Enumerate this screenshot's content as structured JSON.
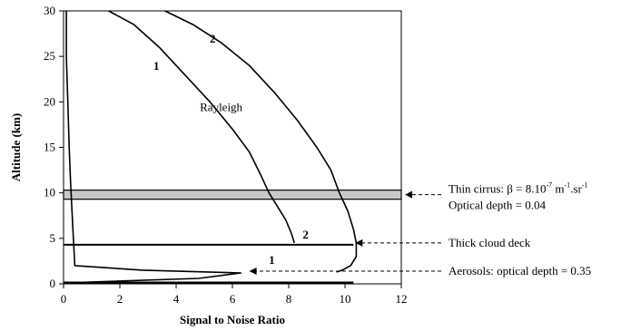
{
  "chart_data": {
    "type": "line",
    "xlabel": "Signal to Noise Ratio",
    "ylabel": "Altitude (km)",
    "xlim": [
      0,
      12
    ],
    "ylim": [
      0,
      30
    ],
    "x_ticks": [
      "0",
      "2",
      "4",
      "6",
      "8",
      "10",
      "12"
    ],
    "y_ticks": [
      "0",
      "5",
      "10",
      "15",
      "20",
      "25",
      "30"
    ],
    "grid": false,
    "series": [
      {
        "name": "Rayleigh",
        "x": [
          1.6,
          2.5,
          3.4,
          4.3,
          5.2,
          6.0,
          6.6,
          7.0,
          7.3,
          7.6,
          7.9,
          8.1,
          8.2
        ],
        "y": [
          30,
          28.5,
          26,
          23,
          20,
          17,
          14.5,
          12,
          10,
          8.5,
          7,
          5.5,
          4.5
        ]
      },
      {
        "name": "",
        "x": [
          3.6,
          4.6,
          5.6,
          6.6,
          7.5,
          8.3,
          9.0,
          9.5,
          9.8,
          10.1,
          10.3,
          10.4,
          10.4,
          10.2,
          9.9,
          9.7
        ],
        "y": [
          30,
          28.5,
          26.5,
          24,
          21,
          18,
          15,
          12.5,
          10,
          8,
          6,
          4.5,
          3,
          2,
          1.5,
          1.3
        ]
      },
      {
        "name": "",
        "x": [
          0.1,
          0.1,
          0.15,
          0.2,
          0.25,
          0.3,
          0.35,
          0.4,
          2.8,
          6.3,
          4.8,
          0
        ],
        "y": [
          30,
          25,
          20,
          15,
          11,
          8,
          5,
          2,
          1.5,
          1.2,
          0.6,
          0.1
        ]
      }
    ],
    "curve_labels": [
      "1",
      "2",
      "1",
      "2",
      "1"
    ],
    "annotation_label": "Rayleigh",
    "layers": [
      {
        "name": "Thin cirrus",
        "y_range": [
          9.3,
          10.3
        ],
        "color": "#c8c8c8",
        "label_prefix": "Thin cirrus:  β = 8.10",
        "label_exp1": "-7",
        "label_mid": " m",
        "label_exp2": "-1",
        "label_mid2": ".sr",
        "label_exp3": "-1",
        "label_line2": "Optical depth = 0.04"
      },
      {
        "name": "Thick cloud deck",
        "y": 4.3,
        "x_end": 10.3,
        "label": "Thick cloud deck"
      },
      {
        "name": "Aerosols",
        "y": 1.2,
        "label": "Aerosols: optical depth = 0.35"
      }
    ]
  }
}
